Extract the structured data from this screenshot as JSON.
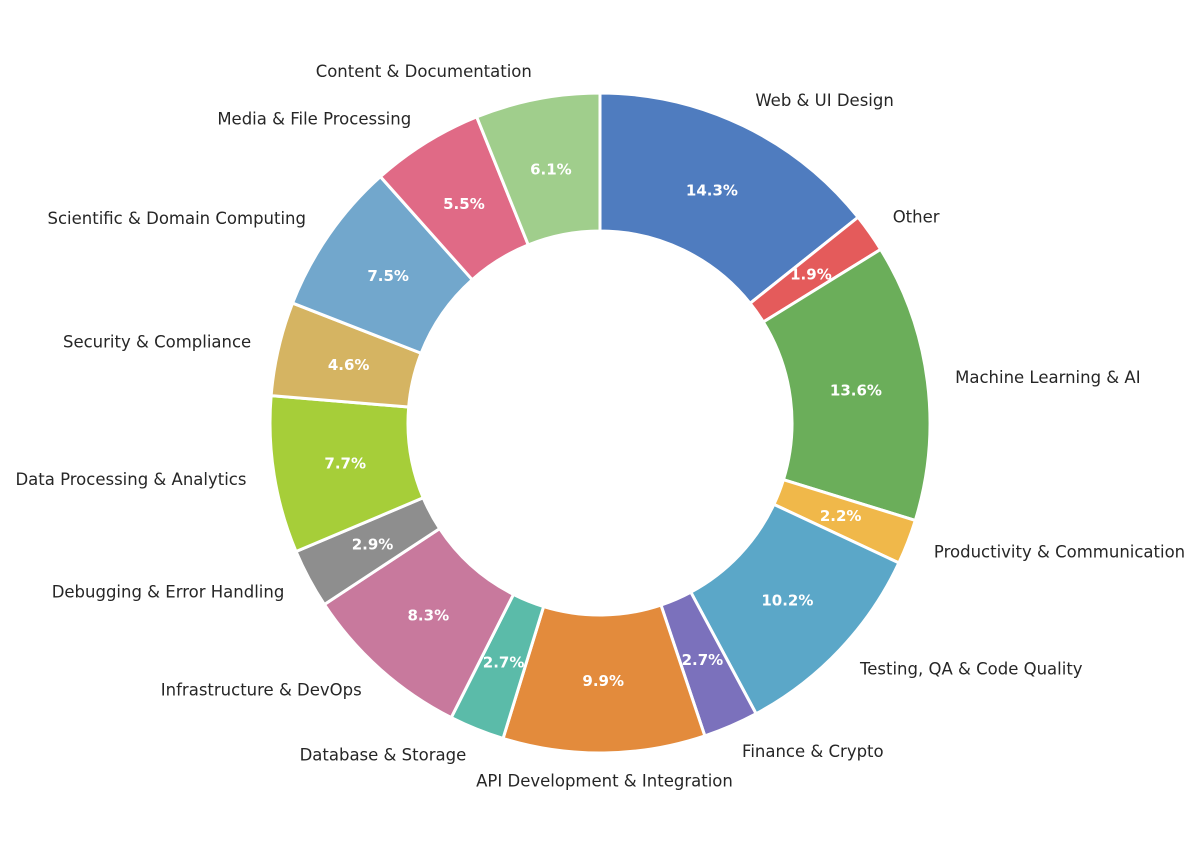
{
  "chart_data": {
    "type": "pie",
    "variant": "donut",
    "title": "",
    "start": "top, clockwise",
    "slices": [
      {
        "label": "Web & UI Design",
        "value": 14.3,
        "value_label": "14.3%",
        "color": "#4F7CBF"
      },
      {
        "label": "Other",
        "value": 1.9,
        "value_label": "1.9%",
        "color": "#E45B5B"
      },
      {
        "label": "Machine Learning & AI",
        "value": 13.6,
        "value_label": "13.6%",
        "color": "#6BAE5A"
      },
      {
        "label": "Productivity & Communication",
        "value": 2.2,
        "value_label": "2.2%",
        "color": "#F0B84A"
      },
      {
        "label": "Testing, QA & Code Quality",
        "value": 10.2,
        "value_label": "10.2%",
        "color": "#5BA7C8"
      },
      {
        "label": "Finance & Crypto",
        "value": 2.7,
        "value_label": "2.7%",
        "color": "#7B71BC"
      },
      {
        "label": "API Development & Integration",
        "value": 9.9,
        "value_label": "9.9%",
        "color": "#E38B3C"
      },
      {
        "label": "Database & Storage",
        "value": 2.7,
        "value_label": "2.7%",
        "color": "#5BBBA9"
      },
      {
        "label": "Infrastructure & DevOps",
        "value": 8.3,
        "value_label": "8.3%",
        "color": "#C8799D"
      },
      {
        "label": "Debugging & Error Handling",
        "value": 2.9,
        "value_label": "2.9%",
        "color": "#8E8E8E"
      },
      {
        "label": "Data Processing & Analytics",
        "value": 7.7,
        "value_label": "7.7%",
        "color": "#A6CE39"
      },
      {
        "label": "Security & Compliance",
        "value": 4.6,
        "value_label": "4.6%",
        "color": "#D5B462"
      },
      {
        "label": "Scientific & Domain Computing",
        "value": 7.5,
        "value_label": "7.5%",
        "color": "#72A7CC"
      },
      {
        "label": "Media & File Processing",
        "value": 5.5,
        "value_label": "5.5%",
        "color": "#E06A86"
      },
      {
        "label": "Content & Documentation",
        "value": 6.1,
        "value_label": "6.1%",
        "color": "#A0CE8C"
      }
    ]
  }
}
